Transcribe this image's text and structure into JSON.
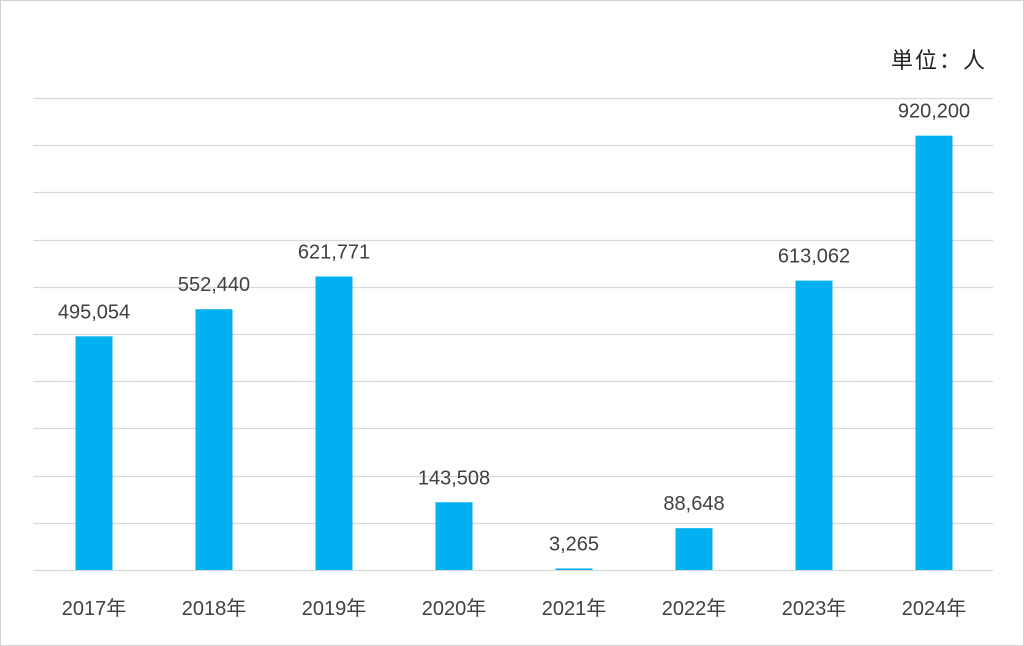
{
  "unit_label": "単位：人",
  "colors": {
    "bar": "#00B0F0",
    "grid": "#D9D9D9",
    "text": "#404040"
  },
  "chart_data": {
    "type": "bar",
    "categories": [
      "2017年",
      "2018年",
      "2019年",
      "2020年",
      "2021年",
      "2022年",
      "2023年",
      "2024年"
    ],
    "values": [
      495054,
      552440,
      621771,
      143508,
      3265,
      88648,
      613062,
      920200
    ],
    "data_labels": [
      "495,054",
      "552,440",
      "621,771",
      "143,508",
      "3,265",
      "88,648",
      "613,062",
      "920,200"
    ],
    "title": "",
    "xlabel": "",
    "ylabel": "",
    "ylim": [
      0,
      1000000
    ],
    "y_grid_step": 100000,
    "grid": true,
    "legend": "none"
  }
}
